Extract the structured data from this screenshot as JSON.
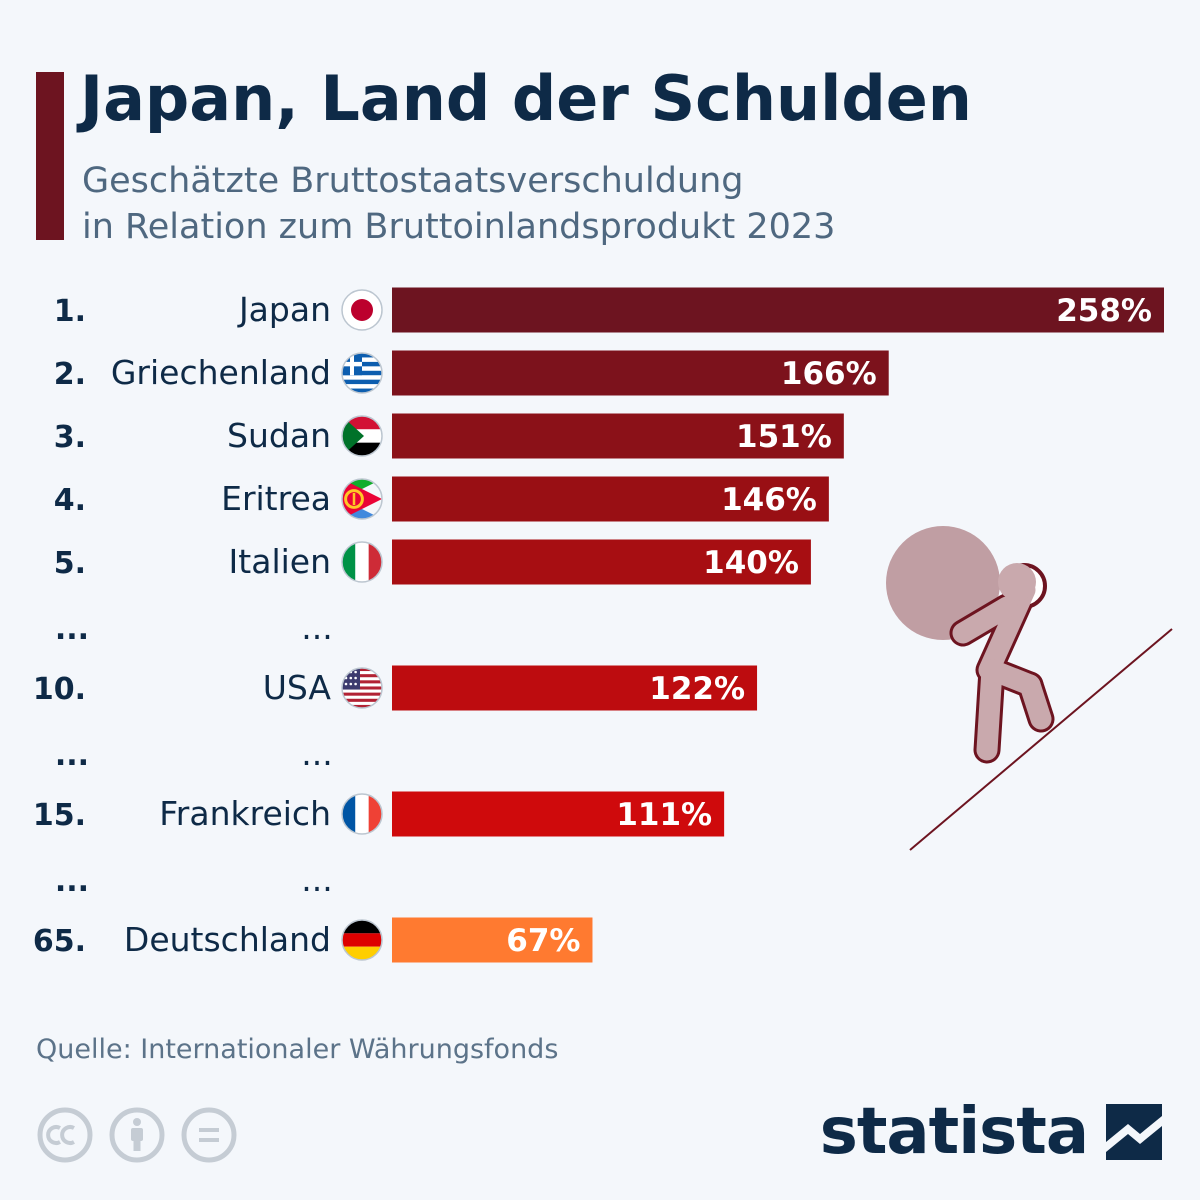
{
  "header": {
    "title": "Japan, Land der Schulden",
    "subtitle_line1": "Geschätzte Bruttostaatsverschuldung",
    "subtitle_line2": "in Relation zum Bruttoinlandsprodukt 2023"
  },
  "chart_data": {
    "type": "bar",
    "orientation": "horizontal",
    "title": "Japan, Land der Schulden",
    "subtitle": "Geschätzte Bruttostaatsverschuldung in Relation zum Bruttoinlandsprodukt 2023",
    "unit": "%",
    "xlim": [
      0,
      258
    ],
    "grid": false,
    "rows": [
      {
        "kind": "bar",
        "rank": "1.",
        "country": "Japan",
        "value": 258,
        "label": "258%",
        "flag": "japan-flag-icon",
        "color": "#6d1420"
      },
      {
        "kind": "bar",
        "rank": "2.",
        "country": "Griechenland",
        "value": 166,
        "label": "166%",
        "flag": "greece-flag-icon",
        "color": "#7c121c"
      },
      {
        "kind": "bar",
        "rank": "3.",
        "country": "Sudan",
        "value": 151,
        "label": "151%",
        "flag": "sudan-flag-icon",
        "color": "#8b1118"
      },
      {
        "kind": "bar",
        "rank": "4.",
        "country": "Eritrea",
        "value": 146,
        "label": "146%",
        "flag": "eritrea-flag-icon",
        "color": "#990f14"
      },
      {
        "kind": "bar",
        "rank": "5.",
        "country": "Italien",
        "value": 140,
        "label": "140%",
        "flag": "italy-flag-icon",
        "color": "#a70e12"
      },
      {
        "kind": "gap",
        "rank": "...",
        "country": "..."
      },
      {
        "kind": "bar",
        "rank": "10.",
        "country": "USA",
        "value": 122,
        "label": "122%",
        "flag": "usa-flag-icon",
        "color": "#bd0c0f"
      },
      {
        "kind": "gap",
        "rank": "...",
        "country": "..."
      },
      {
        "kind": "bar",
        "rank": "15.",
        "country": "Frankreich",
        "value": 111,
        "label": "111%",
        "flag": "france-flag-icon",
        "color": "#cf0a0c"
      },
      {
        "kind": "gap",
        "rank": "...",
        "country": "..."
      },
      {
        "kind": "bar",
        "rank": "65.",
        "country": "Deutschland",
        "value": 67,
        "label": "67%",
        "flag": "germany-flag-icon",
        "color": "#ff7a30"
      }
    ]
  },
  "footer": {
    "source": "Quelle: Internationaler Währungsfonds",
    "brand": "statista",
    "license_icons": [
      "cc-icon",
      "attribution-icon",
      "no-derivatives-icon"
    ]
  },
  "illustration": "person-pushing-boulder-uphill-icon"
}
